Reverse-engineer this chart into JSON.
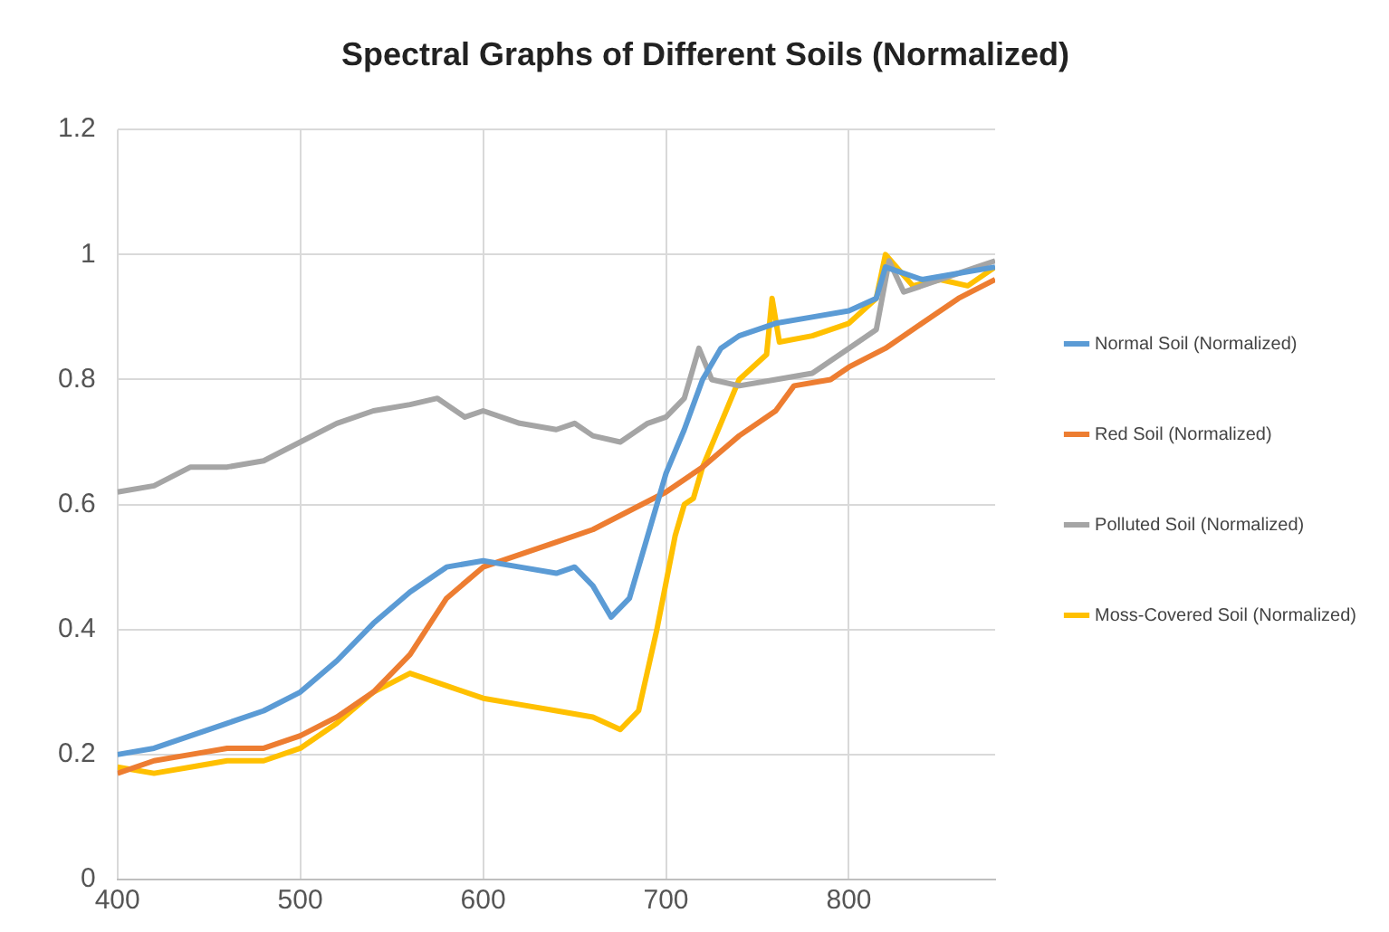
{
  "chart_data": {
    "type": "line",
    "title": "Spectral Graphs of Different Soils (Normalized)",
    "xlim": [
      400,
      880
    ],
    "xticks": [
      400,
      500,
      600,
      700,
      800
    ],
    "ylim": [
      0,
      1.2
    ],
    "yticks": [
      0,
      0.2,
      0.4,
      0.6,
      0.8,
      1,
      1.2
    ],
    "grid": true,
    "legend": "right",
    "marker": "none",
    "line_style": "solid",
    "series": [
      {
        "name": "Normal Soil (Normalized)",
        "color": "#5b9bd5",
        "x": [
          400,
          420,
          440,
          460,
          480,
          500,
          520,
          540,
          560,
          580,
          600,
          620,
          640,
          650,
          660,
          670,
          680,
          690,
          700,
          710,
          720,
          730,
          740,
          760,
          780,
          800,
          815,
          820,
          840,
          860,
          880
        ],
        "values": [
          0.2,
          0.21,
          0.23,
          0.25,
          0.27,
          0.3,
          0.35,
          0.41,
          0.46,
          0.5,
          0.51,
          0.5,
          0.49,
          0.5,
          0.47,
          0.42,
          0.45,
          0.55,
          0.65,
          0.72,
          0.8,
          0.85,
          0.87,
          0.89,
          0.9,
          0.91,
          0.93,
          0.98,
          0.96,
          0.97,
          0.98
        ]
      },
      {
        "name": "Red Soil (Normalized)",
        "color": "#ed7d31",
        "x": [
          400,
          420,
          440,
          460,
          480,
          500,
          520,
          540,
          560,
          580,
          600,
          620,
          640,
          660,
          680,
          700,
          720,
          740,
          760,
          770,
          790,
          800,
          820,
          840,
          860,
          880
        ],
        "values": [
          0.17,
          0.19,
          0.2,
          0.21,
          0.21,
          0.23,
          0.26,
          0.3,
          0.36,
          0.45,
          0.5,
          0.52,
          0.54,
          0.56,
          0.59,
          0.62,
          0.66,
          0.71,
          0.75,
          0.79,
          0.8,
          0.82,
          0.85,
          0.89,
          0.93,
          0.96
        ]
      },
      {
        "name": "Polluted Soil (Normalized)",
        "color": "#a5a5a5",
        "x": [
          400,
          420,
          440,
          460,
          480,
          500,
          520,
          540,
          560,
          575,
          590,
          600,
          620,
          640,
          650,
          660,
          675,
          690,
          700,
          710,
          718,
          725,
          740,
          760,
          780,
          800,
          815,
          822,
          830,
          850,
          870,
          880
        ],
        "values": [
          0.62,
          0.63,
          0.66,
          0.66,
          0.67,
          0.7,
          0.73,
          0.75,
          0.76,
          0.77,
          0.74,
          0.75,
          0.73,
          0.72,
          0.73,
          0.71,
          0.7,
          0.73,
          0.74,
          0.77,
          0.85,
          0.8,
          0.79,
          0.8,
          0.81,
          0.85,
          0.88,
          0.99,
          0.94,
          0.96,
          0.98,
          0.99
        ]
      },
      {
        "name": "Moss-Covered Soil (Normalized)",
        "color": "#ffc000",
        "x": [
          400,
          420,
          440,
          460,
          480,
          500,
          520,
          540,
          560,
          580,
          600,
          620,
          640,
          660,
          675,
          685,
          695,
          705,
          710,
          715,
          720,
          730,
          740,
          755,
          758,
          762,
          780,
          800,
          815,
          820,
          835,
          850,
          865,
          880
        ],
        "values": [
          0.18,
          0.17,
          0.18,
          0.19,
          0.19,
          0.21,
          0.25,
          0.3,
          0.33,
          0.31,
          0.29,
          0.28,
          0.27,
          0.26,
          0.24,
          0.27,
          0.4,
          0.55,
          0.6,
          0.61,
          0.66,
          0.73,
          0.8,
          0.84,
          0.93,
          0.86,
          0.87,
          0.89,
          0.93,
          1.0,
          0.95,
          0.96,
          0.95,
          0.98
        ]
      }
    ]
  }
}
